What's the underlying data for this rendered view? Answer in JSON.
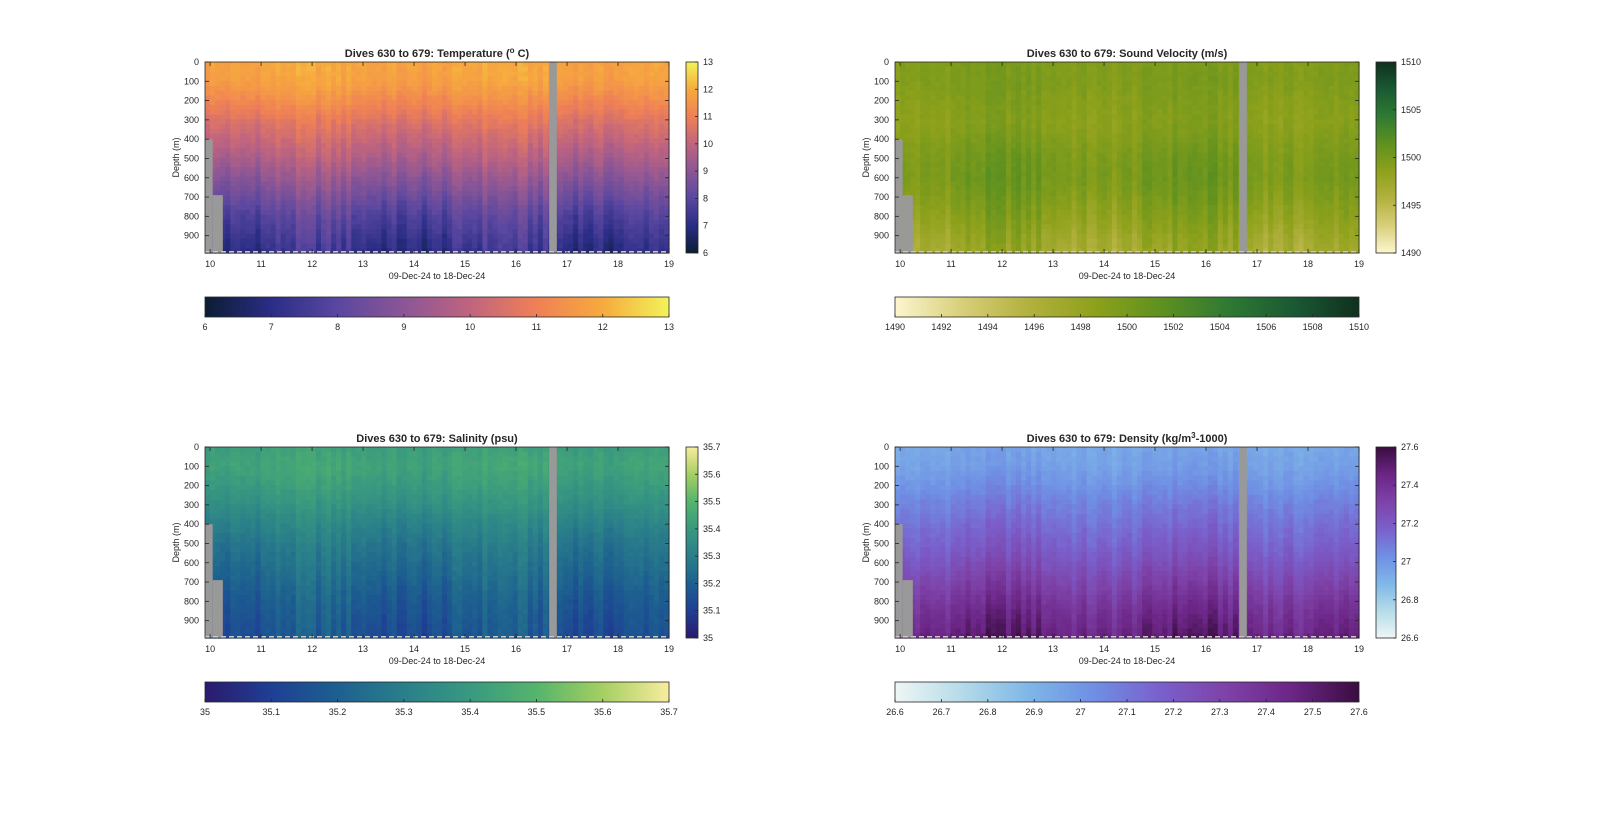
{
  "figure": {
    "x_ticks": [
      "10",
      "11",
      "12",
      "13",
      "14",
      "15",
      "16",
      "17",
      "18",
      "19"
    ],
    "x_tick_values": [
      10,
      11,
      12,
      13,
      14,
      15,
      16,
      17,
      18,
      19
    ],
    "x_range": [
      9.9,
      19.0
    ],
    "y_ticks": [
      "0",
      "100",
      "200",
      "300",
      "400",
      "500",
      "600",
      "700",
      "800",
      "900"
    ],
    "y_tick_values": [
      0,
      100,
      200,
      300,
      400,
      500,
      600,
      700,
      800,
      900
    ],
    "y_range": [
      0,
      990
    ],
    "xlabel": "09-Dec-24 to 18-Dec-24",
    "ylabel": "Depth (m)",
    "gap_days": [
      16.65,
      16.8
    ],
    "missing_color": "#999999"
  },
  "chart_data": [
    {
      "type": "heatmap",
      "title_main": "Dives 630 to 679: Temperature (",
      "title_sup": "o",
      "title_end": " C)",
      "variable": "Temperature",
      "units": "°C",
      "clim": [
        6,
        13
      ],
      "colormap": [
        "#0b1d33",
        "#2a2d86",
        "#5a47a0",
        "#8b5696",
        "#c0647f",
        "#ef8056",
        "#f7aa3e",
        "#f2f35a"
      ],
      "vertical_colorbar_ticks": [
        "6",
        "7",
        "8",
        "9",
        "10",
        "11",
        "12",
        "13"
      ],
      "horizontal_colorbar_ticks": [
        "6",
        "7",
        "8",
        "9",
        "10",
        "11",
        "12",
        "13"
      ],
      "profile_depths_m": [
        0,
        100,
        200,
        300,
        400,
        500,
        600,
        700,
        800,
        900,
        980
      ],
      "mean_profile": [
        11.9,
        11.8,
        11.3,
        10.7,
        10.2,
        9.7,
        9.1,
        8.5,
        7.9,
        7.5,
        7.2
      ]
    },
    {
      "type": "heatmap",
      "title_main": "Dives 630 to 679: Sound Velocity (m/s)",
      "title_sup": "",
      "title_end": "",
      "variable": "Sound Velocity",
      "units": "m/s",
      "clim": [
        1490,
        1510
      ],
      "colormap": [
        "#fcf6cf",
        "#d8cf7a",
        "#b3b13f",
        "#8ea11b",
        "#5f911f",
        "#2f7a33",
        "#1a5a33",
        "#10301f"
      ],
      "vertical_colorbar_ticks": [
        "1490",
        "1495",
        "1500",
        "1505",
        "1510"
      ],
      "horizontal_colorbar_ticks": [
        "1490",
        "1492",
        "1494",
        "1496",
        "1498",
        "1500",
        "1502",
        "1504",
        "1506",
        "1508",
        "1510"
      ],
      "profile_depths_m": [
        0,
        100,
        200,
        300,
        400,
        500,
        600,
        700,
        800,
        900,
        980
      ],
      "mean_profile": [
        1499.5,
        1499.6,
        1499.2,
        1498.9,
        1499.4,
        1500.0,
        1500.2,
        1499.6,
        1498.8,
        1497.8,
        1497.2
      ]
    },
    {
      "type": "heatmap",
      "title_main": "Dives 630 to 679: Salinity (psu)",
      "title_sup": "",
      "title_end": "",
      "variable": "Salinity",
      "units": "psu",
      "clim": [
        35,
        35.7
      ],
      "colormap": [
        "#2b1a6e",
        "#1e3f94",
        "#1d6090",
        "#2a7f8a",
        "#389980",
        "#55b46c",
        "#a5cf62",
        "#f8ec9e"
      ],
      "vertical_colorbar_ticks": [
        "35",
        "35.1",
        "35.2",
        "35.3",
        "35.4",
        "35.5",
        "35.6",
        "35.7"
      ],
      "horizontal_colorbar_ticks": [
        "35",
        "35.1",
        "35.2",
        "35.3",
        "35.4",
        "35.5",
        "35.6",
        "35.7"
      ],
      "profile_depths_m": [
        0,
        100,
        200,
        300,
        400,
        500,
        600,
        700,
        800,
        900,
        980
      ],
      "mean_profile": [
        35.42,
        35.44,
        35.41,
        35.37,
        35.32,
        35.28,
        35.25,
        35.22,
        35.19,
        35.17,
        35.16
      ]
    },
    {
      "type": "heatmap",
      "title_main": "Dives 630 to 679: Density (kg/m",
      "title_sup": "3",
      "title_end": "-1000)",
      "variable": "Density",
      "units": "kg/m3-1000",
      "clim": [
        26.6,
        27.6
      ],
      "colormap": [
        "#eef6f6",
        "#b5dbe8",
        "#7fb7e8",
        "#6f8fe4",
        "#7a60cc",
        "#7e42a8",
        "#6b2585",
        "#3a0d40"
      ],
      "vertical_colorbar_ticks": [
        "26.6",
        "26.8",
        "27",
        "27.2",
        "27.4",
        "27.6"
      ],
      "horizontal_colorbar_ticks": [
        "26.6",
        "26.7",
        "26.8",
        "26.9",
        "27",
        "27.1",
        "27.2",
        "27.3",
        "27.4",
        "27.5",
        "27.6"
      ],
      "profile_depths_m": [
        0,
        100,
        200,
        300,
        400,
        500,
        600,
        700,
        800,
        900,
        980
      ],
      "mean_profile": [
        26.95,
        26.97,
        27.02,
        27.08,
        27.13,
        27.18,
        27.24,
        27.31,
        27.38,
        27.44,
        27.48
      ]
    }
  ]
}
